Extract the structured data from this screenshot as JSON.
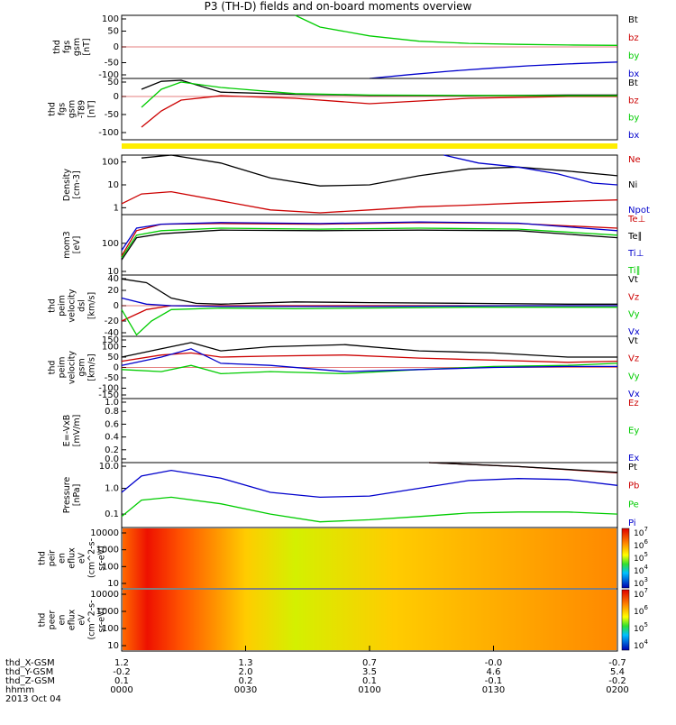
{
  "title": "P3 (TH-D) fields and on-board moments overview",
  "chart_data": [
    {
      "type": "line",
      "ylabel": [
        "thd",
        "fgs",
        "gsm",
        "[nT]"
      ],
      "ylim": [
        -100,
        100
      ],
      "yticks": [
        "100",
        "50",
        "0",
        "-50",
        "-100"
      ],
      "legend": [
        {
          "label": "Bt",
          "color": "#000000"
        },
        {
          "label": "bz",
          "color": "#cc0000"
        },
        {
          "label": "by",
          "color": "#00cc00"
        },
        {
          "label": "bx",
          "color": "#0000cc"
        }
      ],
      "series": [
        {
          "name": "by",
          "color": "#00cc00",
          "x": [
            0.35,
            0.4,
            0.5,
            0.6,
            0.7,
            0.8,
            0.9,
            1.0
          ],
          "y": [
            100,
            63,
            35,
            18,
            11,
            8,
            6,
            5
          ]
        },
        {
          "name": "bx",
          "color": "#0000cc",
          "x": [
            0.5,
            0.58,
            0.66,
            0.74,
            0.82,
            0.9,
            1.0
          ],
          "y": [
            -100,
            -88,
            -77,
            -68,
            -60,
            -54,
            -48
          ]
        }
      ]
    },
    {
      "type": "line",
      "ylabel": [
        "thd",
        "fgs",
        "gsm",
        "-T89",
        "[nT]"
      ],
      "ylim": [
        -120,
        50
      ],
      "yticks": [
        "50",
        "0",
        "-50",
        "-100"
      ],
      "legend": [
        {
          "label": "Bt",
          "color": "#000000"
        },
        {
          "label": "bz",
          "color": "#cc0000"
        },
        {
          "label": "by",
          "color": "#00cc00"
        },
        {
          "label": "bx",
          "color": "#0000cc"
        }
      ],
      "series": [
        {
          "name": "Bt",
          "color": "#000000",
          "x": [
            0.04,
            0.08,
            0.12,
            0.2,
            0.35,
            0.5,
            0.7,
            0.9,
            1.0
          ],
          "y": [
            20,
            42,
            45,
            12,
            6,
            3,
            2,
            4,
            4
          ]
        },
        {
          "name": "bz",
          "color": "#cc0000",
          "x": [
            0.04,
            0.08,
            0.12,
            0.2,
            0.35,
            0.5,
            0.7,
            0.9,
            1.0
          ],
          "y": [
            -85,
            -40,
            -10,
            2,
            -5,
            -20,
            -5,
            0,
            0
          ]
        },
        {
          "name": "by",
          "color": "#00cc00",
          "x": [
            0.04,
            0.08,
            0.12,
            0.2,
            0.35,
            0.5,
            0.7,
            0.9,
            1.0
          ],
          "y": [
            -30,
            20,
            40,
            25,
            8,
            4,
            3,
            2,
            2
          ]
        }
      ]
    },
    {
      "type": "line",
      "ylabel": [
        "Density",
        "[cm-3]"
      ],
      "ylim": [
        0.5,
        200
      ],
      "yscale": "log",
      "yticks": [
        "100",
        "10",
        "1"
      ],
      "legend": [
        {
          "label": "Ne",
          "color": "#cc0000"
        },
        {
          "label": "Ni",
          "color": "#000000"
        },
        {
          "label": "Npot",
          "color": "#0000cc"
        }
      ],
      "series": [
        {
          "name": "Ni",
          "color": "#000000",
          "x": [
            0.04,
            0.1,
            0.2,
            0.3,
            0.4,
            0.5,
            0.6,
            0.7,
            0.8,
            0.9,
            1.0
          ],
          "y": [
            150,
            200,
            90,
            20,
            9,
            10,
            25,
            50,
            60,
            40,
            25
          ]
        },
        {
          "name": "Ne",
          "color": "#cc0000",
          "x": [
            0.0,
            0.04,
            0.1,
            0.2,
            0.3,
            0.4,
            0.5,
            0.6,
            0.7,
            0.8,
            0.9,
            1.0
          ],
          "y": [
            1.5,
            4,
            5,
            2,
            0.8,
            0.6,
            0.8,
            1.1,
            1.3,
            1.6,
            1.9,
            2.2
          ]
        },
        {
          "name": "Npot",
          "color": "#0000cc",
          "x": [
            0.65,
            0.72,
            0.8,
            0.88,
            0.95,
            1.0
          ],
          "y": [
            200,
            90,
            60,
            30,
            12,
            10
          ]
        }
      ]
    },
    {
      "type": "line",
      "ylabel": [
        "mom3",
        "[eV]"
      ],
      "ylim": [
        10,
        800
      ],
      "yscale": "log",
      "yticks": [
        "100",
        "10"
      ],
      "legend": [
        {
          "label": "Te⊥",
          "color": "#cc0000"
        },
        {
          "label": "Te∥",
          "color": "#000000"
        },
        {
          "label": "Ti⊥",
          "color": "#0000cc"
        },
        {
          "label": "Ti∥",
          "color": "#00cc00"
        }
      ],
      "series": [
        {
          "name": "Te⊥",
          "color": "#cc0000",
          "x": [
            0.0,
            0.03,
            0.08,
            0.2,
            0.4,
            0.6,
            0.8,
            1.0
          ],
          "y": [
            40,
            250,
            400,
            420,
            400,
            450,
            420,
            300
          ]
        },
        {
          "name": "Te∥",
          "color": "#000000",
          "x": [
            0.0,
            0.03,
            0.08,
            0.2,
            0.4,
            0.6,
            0.8,
            1.0
          ],
          "y": [
            30,
            150,
            200,
            260,
            250,
            260,
            250,
            150
          ]
        },
        {
          "name": "Ti⊥",
          "color": "#0000cc",
          "x": [
            0.0,
            0.03,
            0.08,
            0.2,
            0.4,
            0.6,
            0.8,
            1.0
          ],
          "y": [
            60,
            300,
            400,
            450,
            420,
            470,
            430,
            250
          ]
        },
        {
          "name": "Ti∥",
          "color": "#00cc00",
          "x": [
            0.0,
            0.03,
            0.08,
            0.2,
            0.4,
            0.6,
            0.8,
            1.0
          ],
          "y": [
            35,
            180,
            250,
            300,
            280,
            300,
            280,
            180
          ]
        }
      ]
    },
    {
      "type": "line",
      "ylabel": [
        "thd",
        "peim",
        "velocity",
        "dsl",
        "[km/s]"
      ],
      "ylim": [
        -40,
        40
      ],
      "yticks": [
        "40",
        "20",
        "0",
        "-20",
        "-40"
      ],
      "legend": [
        {
          "label": "Vt",
          "color": "#000000"
        },
        {
          "label": "Vz",
          "color": "#cc0000"
        },
        {
          "label": "Vy",
          "color": "#00cc00"
        },
        {
          "label": "Vx",
          "color": "#0000cc"
        }
      ],
      "series": [
        {
          "name": "Vt",
          "color": "#000000",
          "x": [
            0.0,
            0.05,
            0.1,
            0.15,
            0.2,
            0.35,
            0.5,
            0.7,
            0.9,
            1.0
          ],
          "y": [
            35,
            30,
            10,
            3,
            2,
            5,
            4,
            3,
            2,
            2
          ]
        },
        {
          "name": "Vz",
          "color": "#cc0000",
          "x": [
            0.0,
            0.05,
            0.1,
            0.2,
            0.5,
            0.8,
            1.0
          ],
          "y": [
            -20,
            -5,
            0,
            0,
            0,
            0,
            0
          ]
        },
        {
          "name": "Vy",
          "color": "#00cc00",
          "x": [
            0.0,
            0.03,
            0.06,
            0.1,
            0.2,
            0.35,
            0.5,
            0.7,
            0.9,
            1.0
          ],
          "y": [
            -5,
            -38,
            -20,
            -5,
            -3,
            -4,
            -3,
            -2,
            -2,
            -2
          ]
        },
        {
          "name": "Vx",
          "color": "#0000cc",
          "x": [
            0.0,
            0.05,
            0.1,
            0.2,
            0.5,
            0.8,
            1.0
          ],
          "y": [
            10,
            2,
            0,
            -1,
            -1,
            0,
            0
          ]
        }
      ]
    },
    {
      "type": "line",
      "ylabel": [
        "thd",
        "peim",
        "velocity",
        "gsm",
        "[km/s]"
      ],
      "ylim": [
        -150,
        150
      ],
      "yticks": [
        "150",
        "100",
        "50",
        "0",
        "-50",
        "-100",
        "-150"
      ],
      "legend": [
        {
          "label": "Vt",
          "color": "#000000"
        },
        {
          "label": "Vz",
          "color": "#cc0000"
        },
        {
          "label": "Vy",
          "color": "#00cc00"
        },
        {
          "label": "Vx",
          "color": "#0000cc"
        }
      ],
      "series": [
        {
          "name": "Vt",
          "color": "#000000",
          "x": [
            0.0,
            0.08,
            0.14,
            0.2,
            0.3,
            0.45,
            0.6,
            0.75,
            0.9,
            1.0
          ],
          "y": [
            50,
            90,
            120,
            80,
            100,
            110,
            80,
            70,
            50,
            50
          ]
        },
        {
          "name": "Vz",
          "color": "#cc0000",
          "x": [
            0.0,
            0.08,
            0.14,
            0.2,
            0.3,
            0.45,
            0.6,
            0.75,
            0.9,
            1.0
          ],
          "y": [
            30,
            60,
            70,
            50,
            55,
            60,
            45,
            35,
            25,
            30
          ]
        },
        {
          "name": "Vy",
          "color": "#00cc00",
          "x": [
            0.0,
            0.08,
            0.14,
            0.2,
            0.3,
            0.45,
            0.6,
            0.75,
            0.9,
            1.0
          ],
          "y": [
            -10,
            -20,
            10,
            -30,
            -20,
            -30,
            -10,
            5,
            10,
            20
          ]
        },
        {
          "name": "Vx",
          "color": "#0000cc",
          "x": [
            0.0,
            0.08,
            0.14,
            0.2,
            0.3,
            0.45,
            0.6,
            0.75,
            0.9,
            1.0
          ],
          "y": [
            10,
            50,
            90,
            20,
            10,
            -20,
            -10,
            0,
            5,
            5
          ]
        }
      ]
    },
    {
      "type": "line",
      "ylabel": [
        "E=-VxB",
        "[mV/m]"
      ],
      "ylim": [
        0,
        1
      ],
      "yticks": [
        "1.0",
        "0.8",
        "0.6",
        "0.4",
        "0.2",
        "0.0"
      ],
      "legend": [
        {
          "label": "Ez",
          "color": "#cc0000"
        },
        {
          "label": "Ey",
          "color": "#00cc00"
        },
        {
          "label": "Ex",
          "color": "#0000cc"
        }
      ],
      "series": []
    },
    {
      "type": "line",
      "ylabel": [
        "Pressure",
        "[nPa]"
      ],
      "ylim": [
        0.03,
        10
      ],
      "yscale": "log",
      "yticks": [
        "10.0",
        "1.0",
        "0.1"
      ],
      "legend": [
        {
          "label": "Pt",
          "color": "#000000"
        },
        {
          "label": "Pb",
          "color": "#cc0000"
        },
        {
          "label": "Pe",
          "color": "#00cc00"
        },
        {
          "label": "Pi",
          "color": "#0000cc"
        }
      ],
      "series": [
        {
          "name": "Pi",
          "color": "#0000cc",
          "x": [
            0.0,
            0.04,
            0.1,
            0.2,
            0.3,
            0.4,
            0.5,
            0.6,
            0.7,
            0.8,
            0.9,
            1.0
          ],
          "y": [
            0.7,
            3,
            5,
            2.5,
            0.7,
            0.45,
            0.5,
            1.0,
            2.0,
            2.4,
            2.2,
            1.3
          ]
        },
        {
          "name": "Pe",
          "color": "#00cc00",
          "x": [
            0.0,
            0.04,
            0.1,
            0.2,
            0.3,
            0.4,
            0.5,
            0.6,
            0.7,
            0.8,
            0.9,
            1.0
          ],
          "y": [
            0.08,
            0.35,
            0.45,
            0.25,
            0.1,
            0.05,
            0.06,
            0.08,
            0.11,
            0.12,
            0.12,
            0.1
          ]
        },
        {
          "name": "Pb",
          "color": "#cc0000",
          "x": [
            0.62,
            0.8,
            1.0
          ],
          "y": [
            10,
            7,
            4
          ]
        },
        {
          "name": "Pt",
          "color": "#000000",
          "x": [
            0.62,
            0.8,
            1.0
          ],
          "y": [
            10,
            7,
            4.2
          ]
        }
      ]
    },
    {
      "type": "heatmap",
      "ylabel": [
        "thd",
        "peir",
        "en",
        "eflux",
        "eV",
        "(cm^2-s-",
        "sr-eV)"
      ],
      "yticks": [
        "10000",
        "1000",
        "100",
        "10"
      ],
      "colorbar_ticks": [
        "10^7",
        "10^6",
        "10^5",
        "10^4",
        "10^3"
      ]
    },
    {
      "type": "heatmap",
      "ylabel": [
        "thd",
        "peer",
        "en",
        "eflux",
        "eV",
        "(cm^2-s-",
        "sr-eV)"
      ],
      "yticks": [
        "10000",
        "1000",
        "100",
        "10"
      ],
      "colorbar_ticks": [
        "10^7",
        "10^6",
        "10^5",
        "10^4"
      ]
    }
  ],
  "xaxis": {
    "rows": [
      {
        "label": "thd_X-GSM",
        "values": [
          "1.2",
          "1.3",
          "0.7",
          "-0.0",
          "-0.7"
        ]
      },
      {
        "label": "thd_Y-GSM",
        "values": [
          "-0.2",
          "2.0",
          "3.5",
          "4.6",
          "5.4"
        ]
      },
      {
        "label": "thd_Z-GSM",
        "values": [
          "0.1",
          "0.2",
          "0.1",
          "-0.1",
          "-0.2"
        ]
      },
      {
        "label": "hhmm",
        "values": [
          "0000",
          "0030",
          "0100",
          "0130",
          "0200"
        ]
      }
    ],
    "date": "2013 Oct 04"
  },
  "colors": {
    "black": "#000000",
    "red": "#cc0000",
    "green": "#00cc00",
    "blue": "#0000cc",
    "flag_yellow": "#ffee00"
  }
}
